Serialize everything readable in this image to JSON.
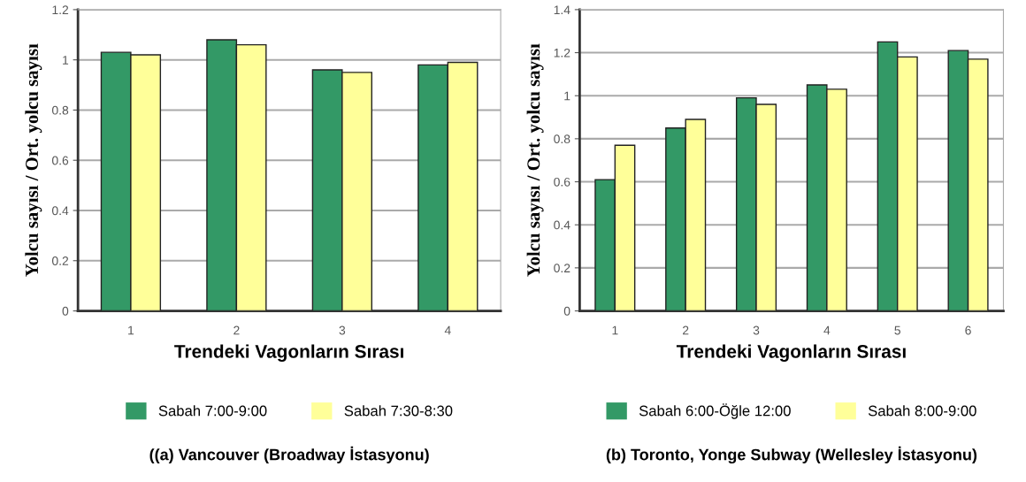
{
  "chart_data": [
    {
      "type": "bar",
      "title": "((a) Vancouver (Broadway İstasyonu)",
      "xlabel": "Trendeki Vagonların Sırası",
      "ylabel": "Yolcu sayısı / Ort. yolcu sayısı",
      "categories": [
        "1",
        "2",
        "3",
        "4"
      ],
      "series": [
        {
          "name": "Sabah 7:00-9:00",
          "color": "#339966",
          "values": [
            1.03,
            1.08,
            0.96,
            0.98
          ]
        },
        {
          "name": "Sabah 7:30-8:30",
          "color": "#ffff99",
          "values": [
            1.02,
            1.06,
            0.95,
            0.99
          ]
        }
      ],
      "ylim": [
        0,
        1.2
      ],
      "yticks": [
        0,
        0.2,
        0.4,
        0.6,
        0.8,
        1,
        1.2
      ],
      "grid": "y",
      "legend": "bottom"
    },
    {
      "type": "bar",
      "title": "(b) Toronto, Yonge Subway (Wellesley İstasyonu)",
      "xlabel": "Trendeki Vagonların Sırası",
      "ylabel": "Yolcu sayısı / Ort. yolcu sayısı",
      "categories": [
        "1",
        "2",
        "3",
        "4",
        "5",
        "6"
      ],
      "series": [
        {
          "name": "Sabah 6:00-Öğle 12:00",
          "color": "#339966",
          "values": [
            0.61,
            0.85,
            0.99,
            1.05,
            1.25,
            1.21
          ]
        },
        {
          "name": "Sabah 8:00-9:00",
          "color": "#ffff99",
          "values": [
            0.77,
            0.89,
            0.96,
            1.03,
            1.18,
            1.17
          ]
        }
      ],
      "ylim": [
        0,
        1.4
      ],
      "yticks": [
        0,
        0.2,
        0.4,
        0.6,
        0.8,
        1,
        1.2,
        1.4
      ],
      "grid": "y",
      "legend": "bottom"
    }
  ]
}
